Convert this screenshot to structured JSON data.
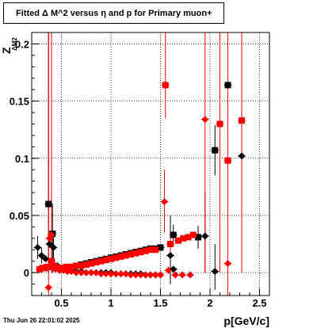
{
  "chart_data": {
    "type": "scatter",
    "title": "Fitted Δ M^2 versus η and p for Primary muon+",
    "xlabel": "p[GeV/c]",
    "ylabel": "Z_{ΔM2}",
    "xlim": [
      0.2,
      2.6
    ],
    "ylim": [
      -0.02,
      0.21
    ],
    "xticks": [
      0.5,
      1,
      1.5,
      2,
      2.5
    ],
    "xtick_labels": [
      "0.5",
      "1",
      "1.5",
      "2",
      "2.5"
    ],
    "yticks": [
      0,
      0.05,
      0.1,
      0.15,
      0.2
    ],
    "ytick_labels": [
      "0",
      "0.05",
      "0.1",
      "0.15",
      "0.2"
    ],
    "grid": true,
    "series": [
      {
        "marker": "square",
        "color": "#000000",
        "points": [
          {
            "x": 0.37,
            "y": 0.06,
            "ylo": 0.0,
            "yhi": 0.21
          },
          {
            "x": 0.41,
            "y": 0.034,
            "ylo": 0.0,
            "yhi": 0.06
          },
          {
            "x": 0.45,
            "y": 0.004
          },
          {
            "x": 0.5,
            "y": 0.004
          },
          {
            "x": 0.55,
            "y": 0.005
          },
          {
            "x": 0.6,
            "y": 0.005
          },
          {
            "x": 0.65,
            "y": 0.006
          },
          {
            "x": 0.7,
            "y": 0.007
          },
          {
            "x": 0.75,
            "y": 0.008
          },
          {
            "x": 0.8,
            "y": 0.009
          },
          {
            "x": 0.85,
            "y": 0.01
          },
          {
            "x": 0.9,
            "y": 0.011
          },
          {
            "x": 0.95,
            "y": 0.012
          },
          {
            "x": 1.0,
            "y": 0.013
          },
          {
            "x": 1.05,
            "y": 0.014
          },
          {
            "x": 1.1,
            "y": 0.015
          },
          {
            "x": 1.15,
            "y": 0.016
          },
          {
            "x": 1.2,
            "y": 0.017
          },
          {
            "x": 1.25,
            "y": 0.018
          },
          {
            "x": 1.3,
            "y": 0.019
          },
          {
            "x": 1.35,
            "y": 0.02
          },
          {
            "x": 1.4,
            "y": 0.021
          },
          {
            "x": 1.45,
            "y": 0.021
          },
          {
            "x": 1.5,
            "y": 0.022
          },
          {
            "x": 1.63,
            "y": 0.033,
            "ylo": 0.024,
            "yhi": 0.042
          },
          {
            "x": 1.88,
            "y": 0.031,
            "ylo": 0.021,
            "yhi": 0.041
          },
          {
            "x": 2.05,
            "y": 0.107,
            "ylo": 0.085,
            "yhi": 0.129
          },
          {
            "x": 2.18,
            "y": 0.164,
            "ylo": 0.0,
            "yhi": 0.21
          }
        ]
      },
      {
        "marker": "diamond",
        "color": "#000000",
        "points": [
          {
            "x": 0.26,
            "y": 0.022,
            "ylo": 0.012,
            "yhi": 0.032
          },
          {
            "x": 0.3,
            "y": 0.015,
            "ylo": 0.008,
            "yhi": 0.022
          },
          {
            "x": 0.34,
            "y": 0.012
          },
          {
            "x": 0.38,
            "y": 0.025
          },
          {
            "x": 0.42,
            "y": 0.022,
            "ylo": 0.01,
            "yhi": 0.034
          },
          {
            "x": 0.46,
            "y": 0.006
          },
          {
            "x": 0.5,
            "y": 0.004
          },
          {
            "x": 0.55,
            "y": 0.003
          },
          {
            "x": 0.6,
            "y": 0.002
          },
          {
            "x": 0.65,
            "y": 0.001
          },
          {
            "x": 0.7,
            "y": 0.001
          },
          {
            "x": 0.75,
            "y": 0.0
          },
          {
            "x": 0.8,
            "y": 0.0
          },
          {
            "x": 0.85,
            "y": 0.0
          },
          {
            "x": 0.9,
            "y": 0.0
          },
          {
            "x": 0.95,
            "y": 0.0
          },
          {
            "x": 1.0,
            "y": 0.0
          },
          {
            "x": 1.05,
            "y": -0.001
          },
          {
            "x": 1.1,
            "y": -0.001
          },
          {
            "x": 1.15,
            "y": -0.001
          },
          {
            "x": 1.2,
            "y": -0.001
          },
          {
            "x": 1.25,
            "y": -0.001
          },
          {
            "x": 1.3,
            "y": -0.001
          },
          {
            "x": 1.35,
            "y": -0.002
          },
          {
            "x": 1.4,
            "y": -0.002
          },
          {
            "x": 1.45,
            "y": -0.002
          },
          {
            "x": 1.5,
            "y": -0.002
          },
          {
            "x": 1.6,
            "y": 0.015,
            "ylo": -0.01,
            "yhi": 0.05
          },
          {
            "x": 1.63,
            "y": 0.003
          },
          {
            "x": 1.95,
            "y": 0.032,
            "ylo": 0.0,
            "yhi": 0.07
          },
          {
            "x": 2.05,
            "y": 0.001,
            "ylo": -0.015,
            "yhi": 0.025
          },
          {
            "x": 2.32,
            "y": 0.102,
            "ylo": 0.0,
            "yhi": 0.16
          }
        ]
      },
      {
        "marker": "square",
        "color": "#ff0000",
        "points": [
          {
            "x": 0.37,
            "y": 0.005,
            "ylo": 0.0,
            "yhi": 0.21
          },
          {
            "x": 0.4,
            "y": 0.01,
            "ylo": 0.0,
            "yhi": 0.21
          },
          {
            "x": 0.43,
            "y": 0.006
          },
          {
            "x": 0.28,
            "y": 0.003
          },
          {
            "x": 0.31,
            "y": 0.004
          },
          {
            "x": 0.34,
            "y": 0.004
          },
          {
            "x": 0.47,
            "y": 0.004
          },
          {
            "x": 0.5,
            "y": 0.004
          },
          {
            "x": 0.55,
            "y": 0.005
          },
          {
            "x": 0.6,
            "y": 0.005
          },
          {
            "x": 0.65,
            "y": 0.006
          },
          {
            "x": 0.7,
            "y": 0.006
          },
          {
            "x": 0.75,
            "y": 0.007
          },
          {
            "x": 0.8,
            "y": 0.008
          },
          {
            "x": 0.85,
            "y": 0.009
          },
          {
            "x": 0.9,
            "y": 0.01
          },
          {
            "x": 0.95,
            "y": 0.011
          },
          {
            "x": 1.0,
            "y": 0.012
          },
          {
            "x": 1.05,
            "y": 0.013
          },
          {
            "x": 1.1,
            "y": 0.014
          },
          {
            "x": 1.15,
            "y": 0.015
          },
          {
            "x": 1.2,
            "y": 0.016
          },
          {
            "x": 1.25,
            "y": 0.017
          },
          {
            "x": 1.3,
            "y": 0.018
          },
          {
            "x": 1.35,
            "y": 0.019
          },
          {
            "x": 1.4,
            "y": 0.02
          },
          {
            "x": 1.45,
            "y": 0.02
          },
          {
            "x": 1.55,
            "y": 0.164,
            "ylo": 0.135,
            "yhi": 0.21
          },
          {
            "x": 1.6,
            "y": 0.025,
            "ylo": 0.015,
            "yhi": 0.035
          },
          {
            "x": 1.68,
            "y": 0.028
          },
          {
            "x": 1.73,
            "y": 0.03
          },
          {
            "x": 1.78,
            "y": 0.031
          },
          {
            "x": 1.83,
            "y": 0.033
          },
          {
            "x": 2.1,
            "y": 0.13,
            "ylo": 0.0,
            "yhi": 0.21
          },
          {
            "x": 2.18,
            "y": 0.098,
            "ylo": 0.0,
            "yhi": 0.21
          },
          {
            "x": 2.32,
            "y": 0.133,
            "ylo": 0.0,
            "yhi": 0.21
          }
        ]
      },
      {
        "marker": "diamond",
        "color": "#ff0000",
        "points": [
          {
            "x": 0.3,
            "y": 0.004
          },
          {
            "x": 0.33,
            "y": 0.005
          },
          {
            "x": 0.37,
            "y": -0.013,
            "ylo": -0.03,
            "yhi": 0.21
          },
          {
            "x": 0.38,
            "y": 0.03
          },
          {
            "x": 0.4,
            "y": 0.033
          },
          {
            "x": 0.44,
            "y": 0.003
          },
          {
            "x": 0.48,
            "y": 0.002
          },
          {
            "x": 0.52,
            "y": 0.002
          },
          {
            "x": 0.56,
            "y": 0.001
          },
          {
            "x": 0.6,
            "y": 0.001
          },
          {
            "x": 0.65,
            "y": 0.0
          },
          {
            "x": 0.7,
            "y": 0.0
          },
          {
            "x": 0.75,
            "y": 0.0
          },
          {
            "x": 0.8,
            "y": 0.0
          },
          {
            "x": 0.85,
            "y": 0.0
          },
          {
            "x": 0.9,
            "y": -0.001
          },
          {
            "x": 0.95,
            "y": -0.001
          },
          {
            "x": 1.0,
            "y": -0.001
          },
          {
            "x": 1.05,
            "y": -0.001
          },
          {
            "x": 1.1,
            "y": -0.001
          },
          {
            "x": 1.15,
            "y": -0.001
          },
          {
            "x": 1.2,
            "y": -0.002
          },
          {
            "x": 1.25,
            "y": -0.002
          },
          {
            "x": 1.3,
            "y": -0.002
          },
          {
            "x": 1.35,
            "y": -0.002
          },
          {
            "x": 1.4,
            "y": -0.002
          },
          {
            "x": 1.45,
            "y": -0.002
          },
          {
            "x": 1.5,
            "y": -0.002
          },
          {
            "x": 1.54,
            "y": 0.062,
            "ylo": 0.035,
            "yhi": 0.09
          },
          {
            "x": 1.58,
            "y": 0.002
          },
          {
            "x": 1.65,
            "y": -0.002
          },
          {
            "x": 1.72,
            "y": -0.002
          },
          {
            "x": 1.8,
            "y": -0.002
          },
          {
            "x": 1.95,
            "y": 0.134,
            "ylo": 0.0,
            "yhi": 0.21
          },
          {
            "x": 2.18,
            "y": 0.008,
            "ylo": -0.02,
            "yhi": 0.05
          }
        ]
      }
    ]
  },
  "footer": {
    "timestamp": "Thu Jun 26 22:01:02 2025"
  }
}
